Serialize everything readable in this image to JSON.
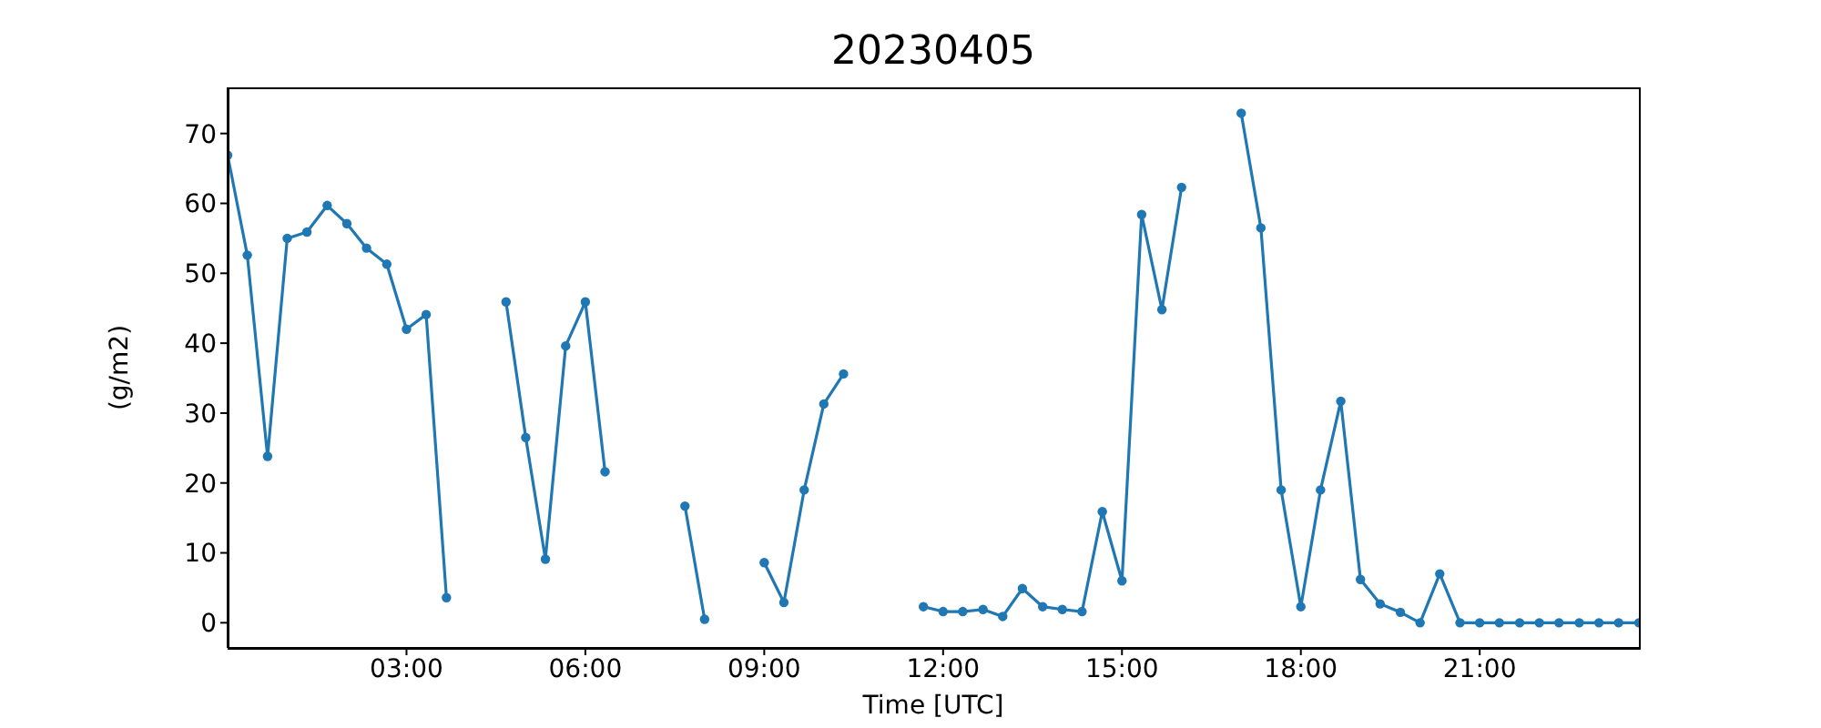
{
  "chart_data": {
    "type": "line",
    "title": "20230405",
    "xlabel": "Time [UTC]",
    "ylabel": "(g/m2)",
    "x": [
      0,
      0.33,
      0.67,
      1,
      1.33,
      1.67,
      2,
      2.33,
      2.67,
      3,
      3.33,
      3.67,
      4,
      4.33,
      4.67,
      5,
      5.33,
      5.67,
      6,
      6.33,
      6.67,
      7,
      7.33,
      7.67,
      8,
      8.33,
      8.67,
      9,
      9.33,
      9.67,
      10,
      10.33,
      10.67,
      11,
      11.33,
      11.67,
      12,
      12.33,
      12.67,
      13,
      13.33,
      13.67,
      14,
      14.33,
      14.67,
      15,
      15.33,
      15.67,
      16,
      16.33,
      16.67,
      17,
      17.33,
      17.67,
      18,
      18.33,
      18.67,
      19,
      19.33,
      19.67,
      20,
      20.33,
      20.67,
      21,
      21.33,
      21.67,
      22,
      22.33,
      22.67,
      23,
      23.33,
      23.67
    ],
    "series": [
      {
        "color": "#1f77b4",
        "values": [
          66.9,
          52.6,
          23.8,
          55.0,
          55.9,
          59.7,
          57.1,
          53.6,
          51.3,
          42.0,
          44.1,
          3.6,
          null,
          null,
          45.9,
          26.5,
          9.1,
          39.6,
          45.9,
          21.6,
          null,
          null,
          null,
          16.7,
          0.5,
          null,
          null,
          8.6,
          2.9,
          19.0,
          31.3,
          35.6,
          null,
          null,
          null,
          2.3,
          1.6,
          1.6,
          1.9,
          0.9,
          4.9,
          2.3,
          1.9,
          1.6,
          15.9,
          6.0,
          58.4,
          44.8,
          62.3,
          null,
          null,
          72.9,
          56.5,
          19.0,
          2.3,
          19.0,
          31.7,
          6.2,
          2.7,
          1.5,
          0,
          7.0,
          0,
          0,
          0,
          0,
          0,
          0,
          0,
          0,
          0,
          0
        ]
      }
    ],
    "xlim": [
      0,
      23.67
    ],
    "xticks": [
      {
        "value": 3,
        "label": "03:00"
      },
      {
        "value": 6,
        "label": "06:00"
      },
      {
        "value": 9,
        "label": "09:00"
      },
      {
        "value": 12,
        "label": "12:00"
      },
      {
        "value": 15,
        "label": "15:00"
      },
      {
        "value": 18,
        "label": "18:00"
      },
      {
        "value": 21,
        "label": "21:00"
      }
    ],
    "ylim": [
      -3.6,
      76.6
    ],
    "yticks": [
      0,
      10,
      20,
      30,
      40,
      50,
      60,
      70
    ],
    "grid": false,
    "legend": false,
    "marker": "circle",
    "line_style": "solid"
  }
}
